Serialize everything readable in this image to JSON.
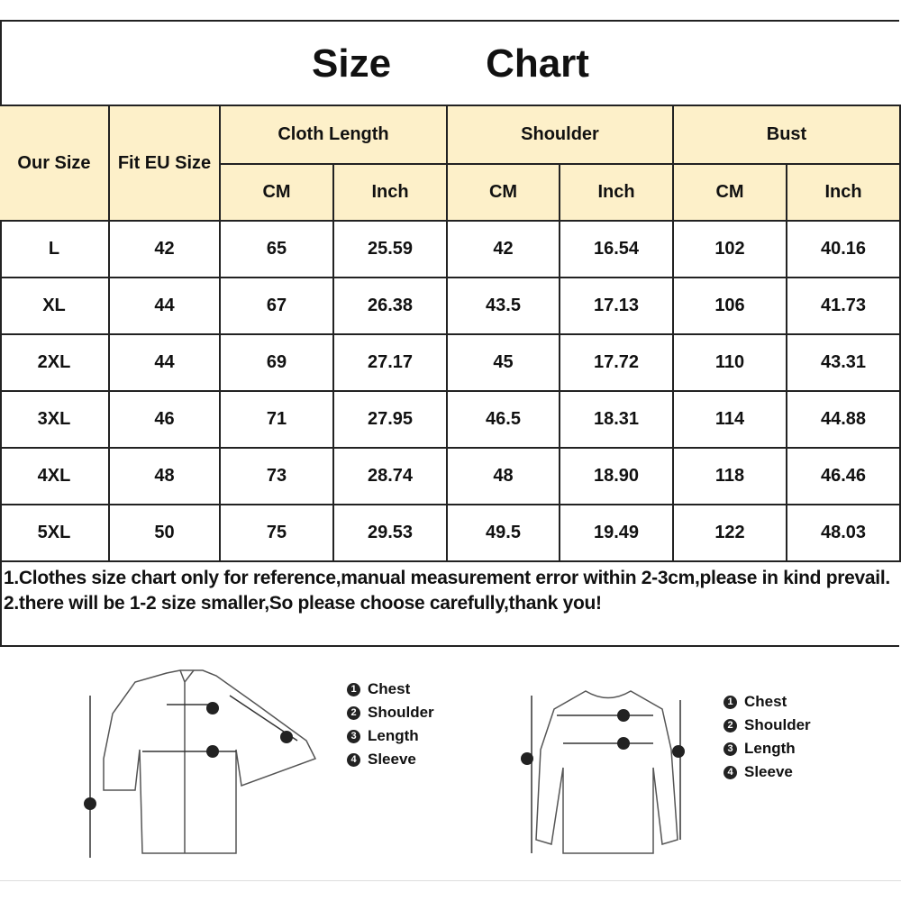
{
  "title": {
    "word1": "Size",
    "word2": "Chart"
  },
  "header": {
    "our_size": "Our Size",
    "fit_eu": "Fit EU Size",
    "groups": [
      "Cloth  Length",
      "Shoulder",
      "Bust"
    ],
    "units": [
      "CM",
      "Inch",
      "CM",
      "Inch",
      "CM",
      "Inch"
    ]
  },
  "rows": [
    [
      "L",
      "42",
      "65",
      "25.59",
      "42",
      "16.54",
      "102",
      "40.16"
    ],
    [
      "XL",
      "44",
      "67",
      "26.38",
      "43.5",
      "17.13",
      "106",
      "41.73"
    ],
    [
      "2XL",
      "44",
      "69",
      "27.17",
      "45",
      "17.72",
      "110",
      "43.31"
    ],
    [
      "3XL",
      "46",
      "71",
      "27.95",
      "46.5",
      "18.31",
      "114",
      "44.88"
    ],
    [
      "4XL",
      "48",
      "73",
      "28.74",
      "48",
      "18.90",
      "118",
      "46.46"
    ],
    [
      "5XL",
      "50",
      "75",
      "29.53",
      "49.5",
      "19.49",
      "122",
      "48.03"
    ]
  ],
  "notes": [
    "1.Clothes size chart only for reference,manual measurement error  within 2-3cm,please in kind prevail.",
    "2.there will be 1-2 size smaller,So please choose carefully,thank you!"
  ],
  "legend_shirt": [
    {
      "num": "1",
      "label": "Chest"
    },
    {
      "num": "2",
      "label": "Shoulder"
    },
    {
      "num": "3",
      "label": "Length"
    },
    {
      "num": "4",
      "label": "Sleeve"
    }
  ],
  "legend_sweater": [
    {
      "num": "1",
      "label": "Chest"
    },
    {
      "num": "2",
      "label": "Shoulder"
    },
    {
      "num": "3",
      "label": "Length"
    },
    {
      "num": "4",
      "label": "Sleeve"
    }
  ],
  "colors": {
    "header_bg": "#fdf0c9",
    "border": "#222222"
  }
}
